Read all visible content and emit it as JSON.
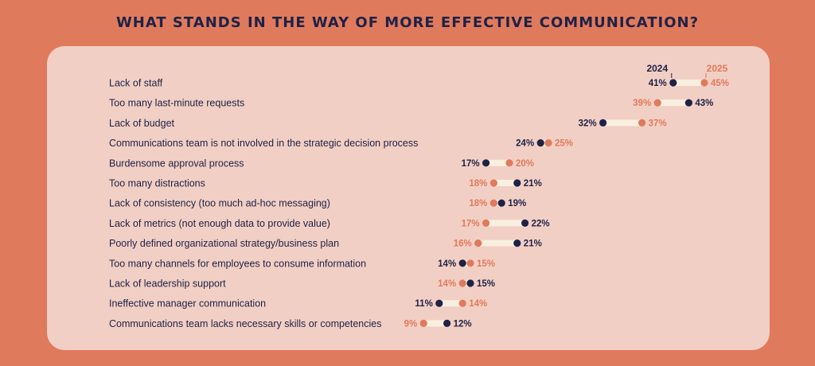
{
  "title": "WHAT STANDS IN THE WAY OF MORE EFFECTIVE COMMUNICATION?",
  "colors": {
    "series_2024": "#1e2247",
    "series_2025": "#e07a5c",
    "bar": "#f8efe0",
    "background": "#e07a5c",
    "panel": "#f2cfc4"
  },
  "chart_data": {
    "type": "dumbbell",
    "title": "WHAT STANDS IN THE WAY OF MORE EFFECTIVE COMMUNICATION?",
    "legend": [
      "2024",
      "2025"
    ],
    "legend_placement": "top-right",
    "unit": "%",
    "categories": [
      "Lack of staff",
      "Too many last-minute requests",
      "Lack of budget",
      "Communications team is not involved in the strategic decision process",
      "Burdensome approval process",
      "Too many distractions",
      "Lack of consistency (too much ad-hoc messaging)",
      "Lack of metrics (not enough data to provide value)",
      "Poorly defined organizational strategy/business plan",
      "Too many channels for employees to consume information",
      "Lack of leadership support",
      "Ineffective manager communication",
      "Communications team lacks necessary skills or competencies"
    ],
    "series": [
      {
        "name": "2024",
        "values": [
          41,
          43,
          32,
          24,
          17,
          21,
          19,
          22,
          21,
          14,
          15,
          11,
          12
        ]
      },
      {
        "name": "2025",
        "values": [
          45,
          39,
          37,
          25,
          20,
          18,
          18,
          17,
          16,
          15,
          14,
          14,
          9
        ]
      }
    ]
  }
}
